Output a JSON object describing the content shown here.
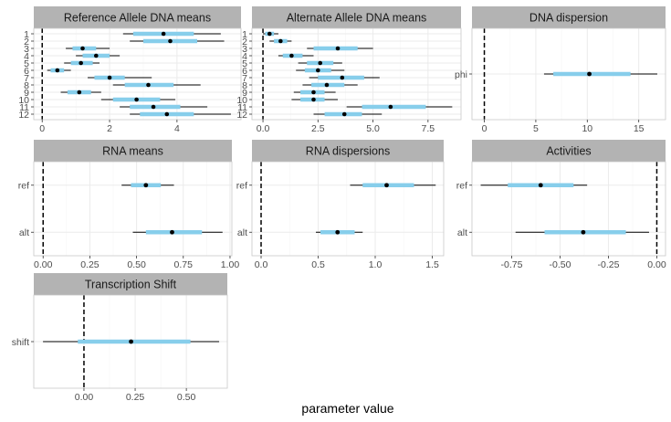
{
  "xlabel": "parameter value",
  "colors": {
    "strip": "#b3b3b3",
    "inner": "#87ceeb",
    "outer": "#000000",
    "point": "#000000",
    "ref_line": "#000000",
    "grid": "#ebebeb",
    "panel_border": "#c8c8c8"
  },
  "chart_data": [
    {
      "type": "interval",
      "title": "Reference Allele DNA means",
      "categories": [
        "1",
        "2",
        "3",
        "4",
        "5",
        "6",
        "7",
        "8",
        "9",
        "10",
        "11",
        "12"
      ],
      "median": [
        3.6,
        3.8,
        1.2,
        1.6,
        1.15,
        0.45,
        2.0,
        3.15,
        1.1,
        2.8,
        3.3,
        3.7
      ],
      "inner": [
        [
          2.7,
          4.5
        ],
        [
          3.0,
          4.6
        ],
        [
          0.9,
          1.6
        ],
        [
          1.2,
          2.0
        ],
        [
          0.85,
          1.5
        ],
        [
          0.25,
          0.65
        ],
        [
          1.55,
          2.45
        ],
        [
          2.45,
          3.9
        ],
        [
          0.75,
          1.45
        ],
        [
          2.1,
          3.5
        ],
        [
          2.6,
          4.1
        ],
        [
          2.9,
          4.5
        ]
      ],
      "outer": [
        [
          2.4,
          5.3
        ],
        [
          2.6,
          5.4
        ],
        [
          0.7,
          2.0
        ],
        [
          1.0,
          2.3
        ],
        [
          0.65,
          1.7
        ],
        [
          0.15,
          0.85
        ],
        [
          1.35,
          3.25
        ],
        [
          2.1,
          4.7
        ],
        [
          0.55,
          1.75
        ],
        [
          1.75,
          3.95
        ],
        [
          2.3,
          4.9
        ],
        [
          2.6,
          5.6
        ]
      ],
      "xlim": [
        -0.25,
        5.9
      ],
      "xticks": [
        0,
        2,
        4
      ],
      "xticklabels": [
        "0",
        "2",
        "4"
      ]
    },
    {
      "type": "interval",
      "title": "Alternate Allele DNA means",
      "categories": [
        "1",
        "2",
        "3",
        "4",
        "5",
        "6",
        "7",
        "8",
        "9",
        "10",
        "11",
        "12"
      ],
      "median": [
        0.3,
        0.8,
        3.4,
        1.3,
        2.6,
        2.5,
        3.6,
        2.9,
        2.3,
        2.3,
        5.8,
        3.7
      ],
      "inner": [
        [
          0.1,
          0.5
        ],
        [
          0.5,
          1.1
        ],
        [
          2.3,
          4.3
        ],
        [
          0.9,
          1.8
        ],
        [
          2.0,
          3.2
        ],
        [
          1.9,
          3.1
        ],
        [
          2.5,
          4.6
        ],
        [
          2.2,
          3.7
        ],
        [
          1.7,
          2.8
        ],
        [
          1.7,
          2.8
        ],
        [
          4.5,
          7.4
        ],
        [
          2.8,
          4.5
        ]
      ],
      "outer": [
        [
          0.0,
          0.7
        ],
        [
          0.3,
          1.3
        ],
        [
          2.0,
          5.0
        ],
        [
          0.7,
          2.3
        ],
        [
          1.6,
          3.6
        ],
        [
          1.5,
          3.7
        ],
        [
          2.1,
          5.3
        ],
        [
          1.8,
          4.3
        ],
        [
          1.4,
          3.3
        ],
        [
          1.3,
          3.4
        ],
        [
          3.8,
          8.6
        ],
        [
          2.3,
          5.4
        ]
      ],
      "xlim": [
        -0.5,
        9.0
      ],
      "xticks": [
        0,
        2.5,
        5,
        7.5
      ],
      "xticklabels": [
        "0.0",
        "2.5",
        "5.0",
        "7.5"
      ]
    },
    {
      "type": "interval",
      "title": "DNA dispersion",
      "categories": [
        "phi"
      ],
      "median": [
        10.2
      ],
      "inner": [
        [
          6.7,
          14.2
        ]
      ],
      "outer": [
        [
          5.8,
          16.8
        ]
      ],
      "xlim": [
        -1.2,
        17.6
      ],
      "xticks": [
        0,
        5,
        10,
        15
      ],
      "xticklabels": [
        "0",
        "5",
        "10",
        "15"
      ]
    },
    {
      "type": "interval",
      "title": "RNA means",
      "categories": [
        "ref",
        "alt"
      ],
      "median": [
        0.55,
        0.69
      ],
      "inner": [
        [
          0.47,
          0.63
        ],
        [
          0.55,
          0.85
        ]
      ],
      "outer": [
        [
          0.42,
          0.7
        ],
        [
          0.48,
          0.96
        ]
      ],
      "xlim": [
        -0.05,
        1.01
      ],
      "xticks": [
        0,
        0.25,
        0.5,
        0.75,
        1.0
      ],
      "xticklabels": [
        "0.00",
        "0.25",
        "0.50",
        "0.75",
        "1.00"
      ]
    },
    {
      "type": "interval",
      "title": "RNA dispersions",
      "categories": [
        "ref",
        "alt"
      ],
      "median": [
        1.1,
        0.67
      ],
      "inner": [
        [
          0.89,
          1.34
        ],
        [
          0.52,
          0.82
        ]
      ],
      "outer": [
        [
          0.78,
          1.53
        ],
        [
          0.48,
          0.89
        ]
      ],
      "xlim": [
        -0.08,
        1.6
      ],
      "xticks": [
        0,
        0.5,
        1.0,
        1.5
      ],
      "xticklabels": [
        "0.0",
        "0.5",
        "1.0",
        "1.5"
      ]
    },
    {
      "type": "interval",
      "title": "Activities",
      "categories": [
        "ref",
        "alt"
      ],
      "median": [
        -0.6,
        -0.38
      ],
      "inner": [
        [
          -0.77,
          -0.43
        ],
        [
          -0.58,
          -0.16
        ]
      ],
      "outer": [
        [
          -0.91,
          -0.36
        ],
        [
          -0.73,
          -0.04
        ]
      ],
      "xlim": [
        -0.955,
        0.045
      ],
      "xticks": [
        -0.75,
        -0.5,
        -0.25,
        0
      ],
      "xticklabels": [
        "-0.75",
        "-0.50",
        "-0.25",
        "0.00"
      ]
    },
    {
      "type": "interval",
      "title": "Transcription Shift",
      "categories": [
        "shift"
      ],
      "median": [
        0.23
      ],
      "inner": [
        [
          -0.03,
          0.52
        ]
      ],
      "outer": [
        [
          -0.2,
          0.66
        ]
      ],
      "xlim": [
        -0.245,
        0.7
      ],
      "xticks": [
        0,
        0.25,
        0.5
      ],
      "xticklabels": [
        "0.00",
        "0.25",
        "0.50"
      ]
    }
  ]
}
